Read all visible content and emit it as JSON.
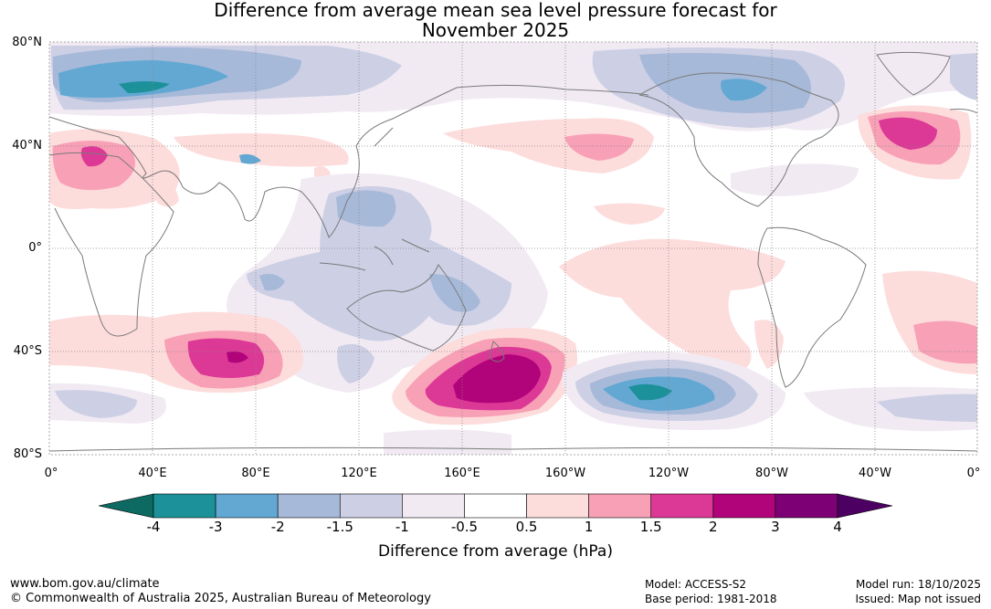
{
  "title_line1": "Difference from average mean sea level pressure forecast for",
  "title_line2": "November 2025",
  "map": {
    "lat_labels": [
      "80°N",
      "40°N",
      "0°",
      "40°S",
      "80°S"
    ],
    "lon_labels": [
      "0°",
      "40°E",
      "80°E",
      "120°E",
      "160°E",
      "160°W",
      "120°W",
      "80°W",
      "40°W",
      "0°"
    ]
  },
  "colorbar": {
    "ticks": [
      "-4",
      "-3",
      "-2",
      "-1.5",
      "-1",
      "-0.5",
      "0.5",
      "1",
      "1.5",
      "2",
      "3",
      "4"
    ],
    "colors": [
      "#1d9199",
      "#62a8d3",
      "#a6b9d8",
      "#cdcfe5",
      "#f1eaf3",
      "#ffffff",
      "#fddcdc",
      "#f8a0b6",
      "#dc3896",
      "#b1037a",
      "#7d0074"
    ],
    "under_color": "#0c6a62",
    "over_color": "#4c0062",
    "label": "Difference from average (hPa)"
  },
  "footer": {
    "url": "www.bom.gov.au/climate",
    "copyright": "© Commonwealth of Australia 2025, Australian Bureau of Meteorology",
    "model": "Model: ACCESS-S2",
    "base_period": "Base period: 1981-2018",
    "model_run": "Model run: 18/10/2025",
    "issued": "Issued: Map not issued"
  }
}
